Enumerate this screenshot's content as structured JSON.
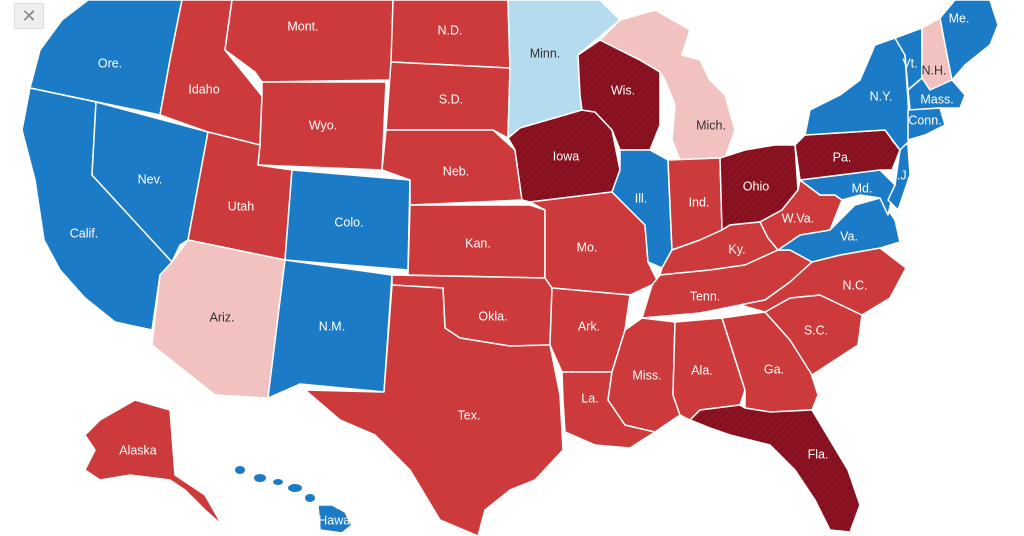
{
  "colors": {
    "dem": "#1c7bc6",
    "dem_lean": "#b5dbef",
    "rep": "#cc3a3b",
    "rep_lean": "#f2c2c0",
    "rep_flip": "#8e1322"
  },
  "close_button": {
    "icon": "close-icon",
    "glyph": "✕"
  },
  "states": [
    {
      "abbr": "Ore.",
      "party": "dem"
    },
    {
      "abbr": "Calif.",
      "party": "dem"
    },
    {
      "abbr": "Nev.",
      "party": "dem"
    },
    {
      "abbr": "Idaho",
      "party": "rep"
    },
    {
      "abbr": "Mont.",
      "party": "rep"
    },
    {
      "abbr": "Wyo.",
      "party": "rep"
    },
    {
      "abbr": "Utah",
      "party": "rep"
    },
    {
      "abbr": "Colo.",
      "party": "dem"
    },
    {
      "abbr": "Ariz.",
      "party": "rep_lean"
    },
    {
      "abbr": "N.M.",
      "party": "dem"
    },
    {
      "abbr": "N.D.",
      "party": "rep"
    },
    {
      "abbr": "S.D.",
      "party": "rep"
    },
    {
      "abbr": "Neb.",
      "party": "rep"
    },
    {
      "abbr": "Kan.",
      "party": "rep"
    },
    {
      "abbr": "Okla.",
      "party": "rep"
    },
    {
      "abbr": "Tex.",
      "party": "rep"
    },
    {
      "abbr": "Minn.",
      "party": "dem_lean"
    },
    {
      "abbr": "Iowa",
      "party": "rep_flip"
    },
    {
      "abbr": "Mo.",
      "party": "rep"
    },
    {
      "abbr": "Ark.",
      "party": "rep"
    },
    {
      "abbr": "La.",
      "party": "rep"
    },
    {
      "abbr": "Wis.",
      "party": "rep_flip"
    },
    {
      "abbr": "Ill.",
      "party": "dem"
    },
    {
      "abbr": "Mich.",
      "party": "rep_lean"
    },
    {
      "abbr": "Ind.",
      "party": "rep"
    },
    {
      "abbr": "Ohio",
      "party": "rep_flip"
    },
    {
      "abbr": "Ky.",
      "party": "rep"
    },
    {
      "abbr": "Tenn.",
      "party": "rep"
    },
    {
      "abbr": "Miss.",
      "party": "rep"
    },
    {
      "abbr": "Ala.",
      "party": "rep"
    },
    {
      "abbr": "Ga.",
      "party": "rep"
    },
    {
      "abbr": "Fla.",
      "party": "rep_flip"
    },
    {
      "abbr": "S.C.",
      "party": "rep"
    },
    {
      "abbr": "N.C.",
      "party": "rep"
    },
    {
      "abbr": "Va.",
      "party": "dem"
    },
    {
      "abbr": "W.Va.",
      "party": "rep"
    },
    {
      "abbr": "Md.",
      "party": "dem"
    },
    {
      "abbr": "Pa.",
      "party": "rep_flip"
    },
    {
      "abbr": "N.J.",
      "party": "dem"
    },
    {
      "abbr": "N.Y.",
      "party": "dem"
    },
    {
      "abbr": "Vt.",
      "party": "dem"
    },
    {
      "abbr": "N.H.",
      "party": "rep_lean"
    },
    {
      "abbr": "Me.",
      "party": "dem"
    },
    {
      "abbr": "Mass.",
      "party": "dem"
    },
    {
      "abbr": "Conn.",
      "party": "dem"
    },
    {
      "abbr": "Alaska",
      "party": "rep"
    },
    {
      "abbr": "Hawaii",
      "party": "dem"
    }
  ]
}
